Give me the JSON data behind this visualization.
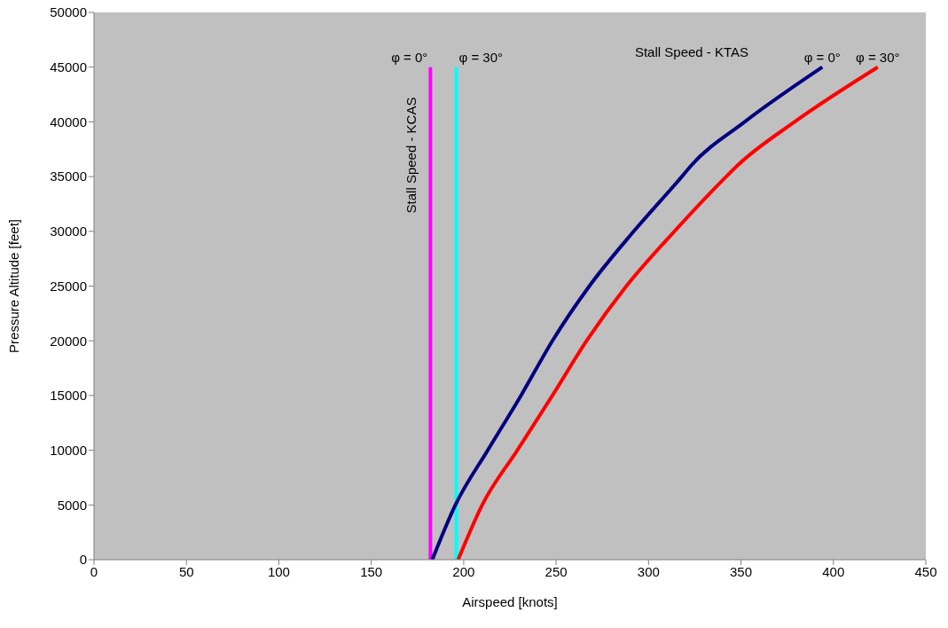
{
  "chart_data": {
    "type": "line",
    "xlabel": "Airspeed [knots]",
    "ylabel": "Pressure Altitude [feet]",
    "xlim": [
      0,
      450
    ],
    "xticks": [
      0,
      50,
      100,
      150,
      200,
      250,
      300,
      350,
      400,
      450
    ],
    "ylim": [
      0,
      50000
    ],
    "yticks": [
      0,
      5000,
      10000,
      15000,
      20000,
      25000,
      30000,
      35000,
      40000,
      45000,
      50000
    ],
    "grid": false,
    "legend": false,
    "marker": "none",
    "line_style": "solid",
    "annotations": [
      "Stall Speed - KCAS",
      "Stall Speed - KTAS"
    ],
    "series": [
      {
        "name": "φ = 0°",
        "color": "#ff00ff",
        "x": [
          182,
          182
        ],
        "values": [
          0,
          45000
        ]
      },
      {
        "name": "φ = 30°",
        "color": "#00ffff",
        "x": [
          196,
          196
        ],
        "values": [
          0,
          45000
        ]
      },
      {
        "name": "φ = 0°",
        "color": "#000080",
        "x": [
          183,
          195.5,
          213,
          231,
          248,
          268,
          292,
          318,
          323,
          352,
          394
        ],
        "values": [
          0,
          5000,
          10000,
          15000,
          20000,
          25000,
          30000,
          35000,
          36000,
          40000,
          45000
        ]
      },
      {
        "name": "φ = 30°",
        "color": "#ff0000",
        "x": [
          197,
          210,
          229,
          248,
          266.5,
          288,
          314,
          342,
          348,
          379,
          424
        ],
        "values": [
          0,
          5000,
          10000,
          15000,
          20000,
          25000,
          30000,
          35000,
          36000,
          40000,
          45000
        ]
      }
    ]
  }
}
